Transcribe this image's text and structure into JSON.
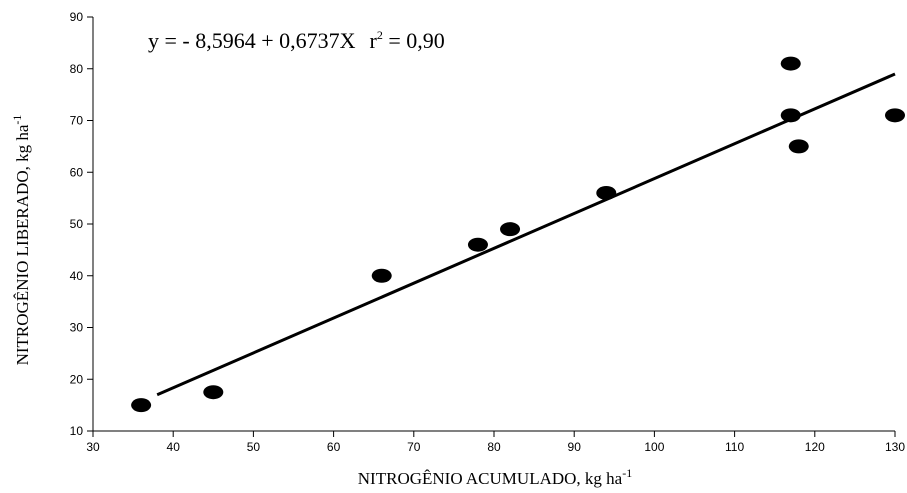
{
  "chart_data": {
    "type": "scatter",
    "equation": {
      "main": "y = - 8,5964 + 0,6737X",
      "r2_label": "r",
      "r2_exponent": "2",
      "r2_value": " = 0,90"
    },
    "xlabel": {
      "text": "NITROGÊNIO ACUMULADO, kg ha",
      "superscript": "-1"
    },
    "ylabel": {
      "text": "NITROGÊNIO LIBERADO, kg ha",
      "superscript": "-1"
    },
    "xlim": [
      30,
      130
    ],
    "ylim": [
      10,
      90
    ],
    "xticks": [
      "30",
      "40",
      "50",
      "60",
      "70",
      "80",
      "90",
      "100",
      "110",
      "120",
      "130"
    ],
    "yticks": [
      "10",
      "20",
      "30",
      "40",
      "50",
      "60",
      "70",
      "80",
      "90"
    ],
    "points": [
      {
        "x": 36,
        "y": 15
      },
      {
        "x": 45,
        "y": 17.5
      },
      {
        "x": 66,
        "y": 40
      },
      {
        "x": 78,
        "y": 46
      },
      {
        "x": 82,
        "y": 49
      },
      {
        "x": 94,
        "y": 56
      },
      {
        "x": 117,
        "y": 81
      },
      {
        "x": 117,
        "y": 71
      },
      {
        "x": 118,
        "y": 65
      },
      {
        "x": 130,
        "y": 71
      }
    ],
    "trendline": {
      "intercept": -8.5964,
      "slope": 0.6737,
      "x_from": 38,
      "x_to": 130
    },
    "grid": false,
    "legend": "none"
  }
}
